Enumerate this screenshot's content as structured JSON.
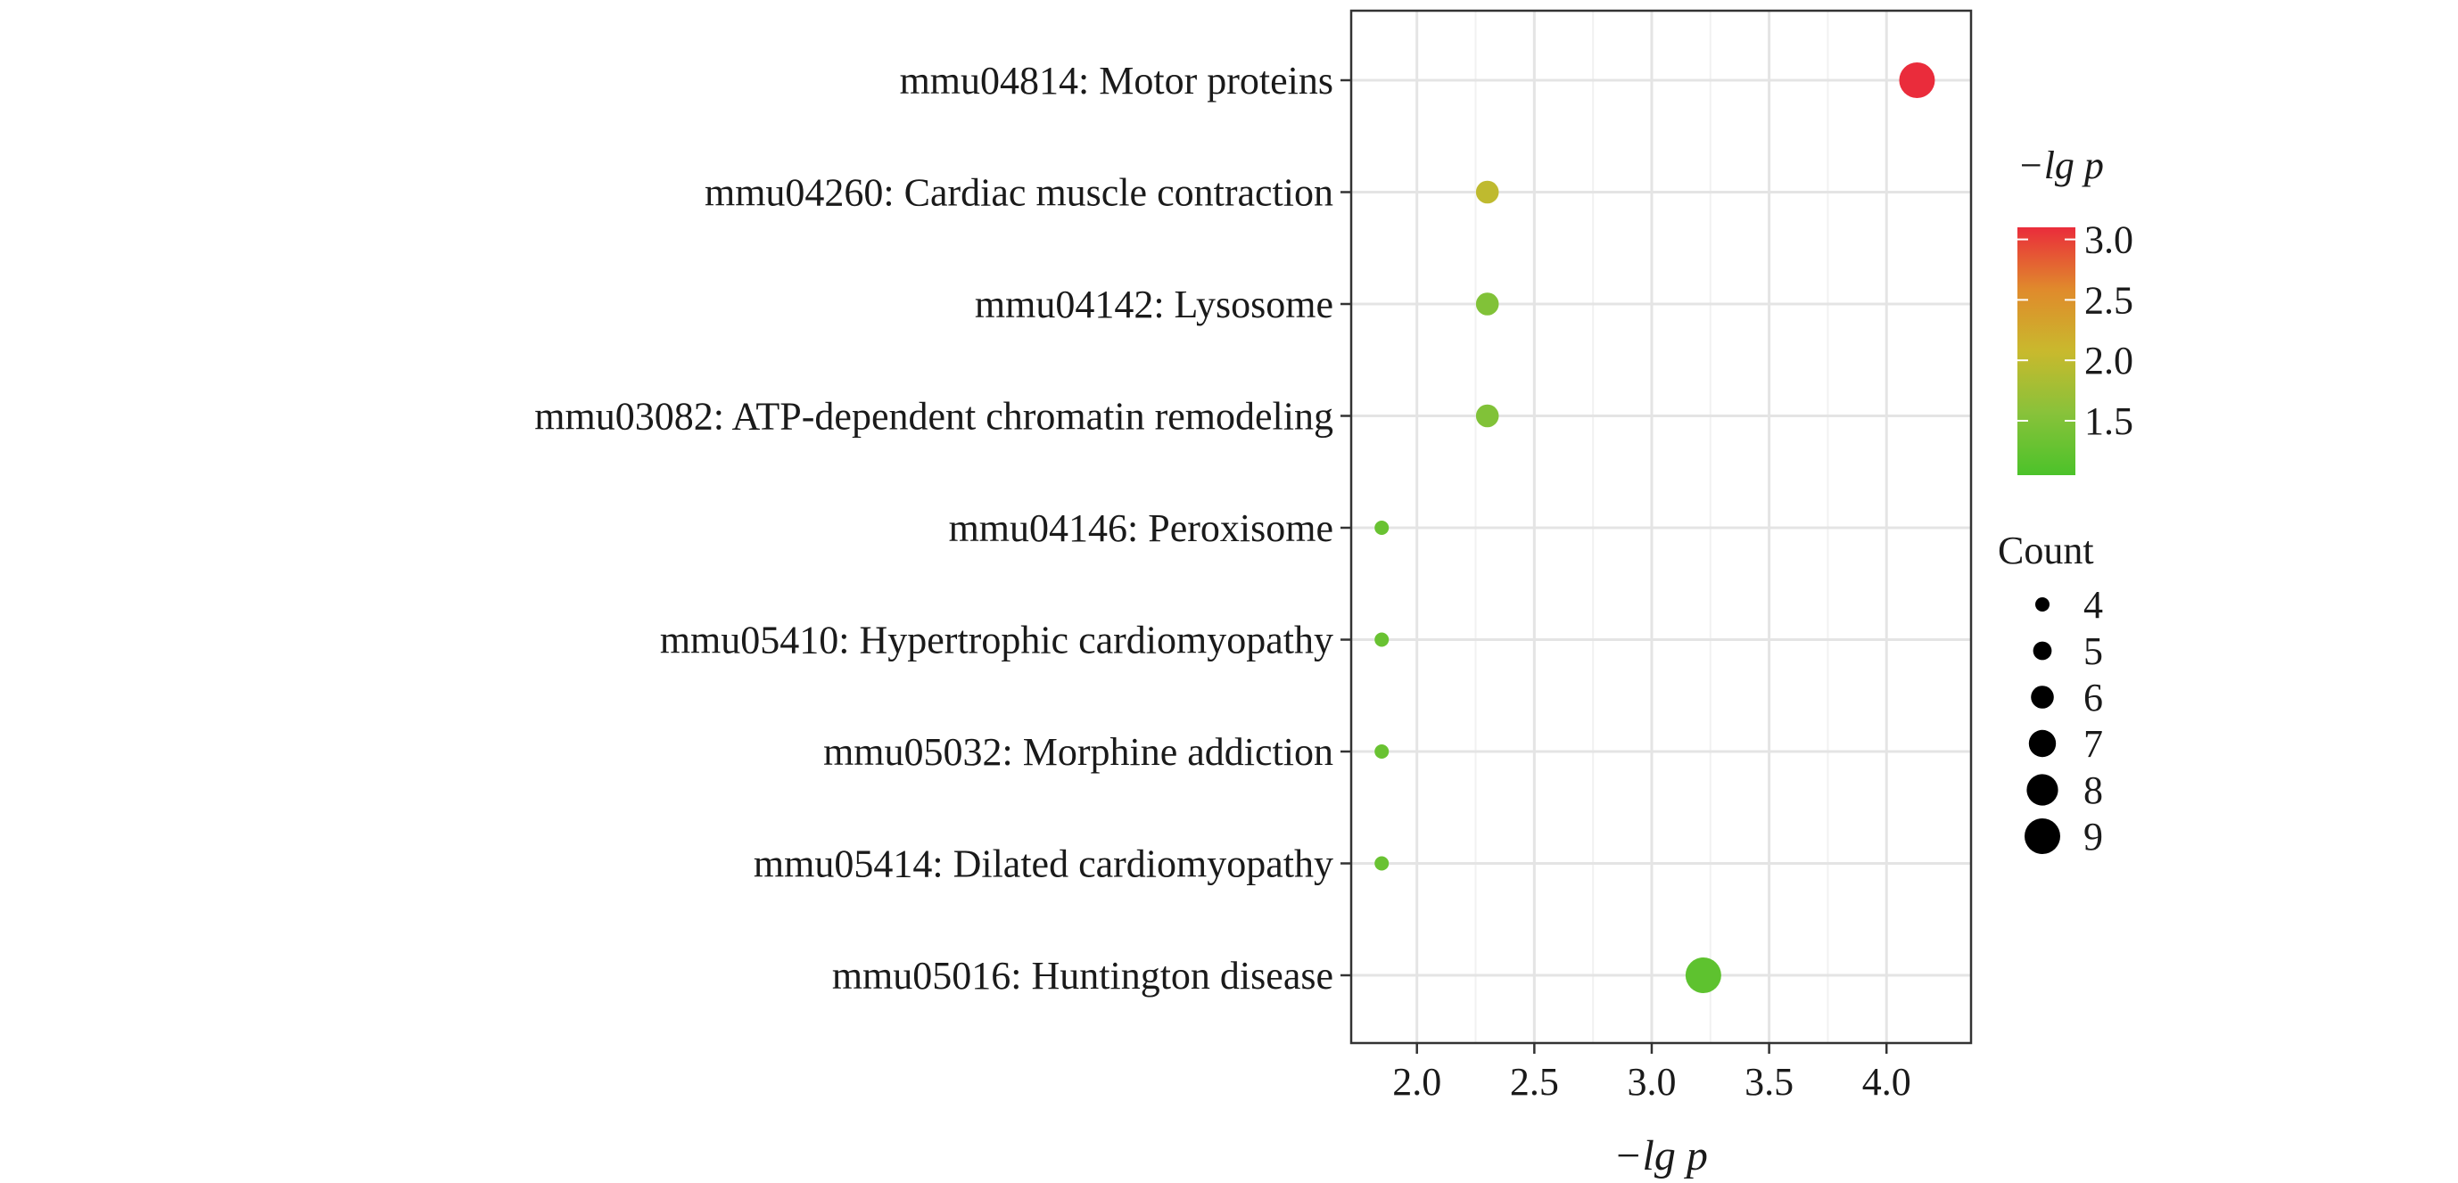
{
  "chart_data": {
    "type": "scatter",
    "xlabel": "−lg p",
    "x_ticks": [
      "2.0",
      "2.5",
      "3.0",
      "3.5",
      "4.0"
    ],
    "xlim": [
      1.72,
      4.36
    ],
    "categories": [
      "mmu04814: Motor proteins",
      "mmu04260: Cardiac muscle contraction",
      "mmu04142: Lysosome",
      "mmu03082: ATP-dependent chromatin remodeling",
      "mmu04146: Peroxisome",
      "mmu05410: Hypertrophic cardiomyopathy",
      "mmu05032: Morphine addiction",
      "mmu05414: Dilated cardiomyopathy",
      "mmu05016: Huntington disease"
    ],
    "points": [
      {
        "x": 4.13,
        "count": 9,
        "color_value": 3.1
      },
      {
        "x": 2.3,
        "count": 6,
        "color_value": 2.0
      },
      {
        "x": 2.3,
        "count": 6,
        "color_value": 1.5
      },
      {
        "x": 2.3,
        "count": 6,
        "color_value": 1.5
      },
      {
        "x": 1.85,
        "count": 4,
        "color_value": 1.3
      },
      {
        "x": 1.85,
        "count": 4,
        "color_value": 1.3
      },
      {
        "x": 1.85,
        "count": 4,
        "color_value": 1.3
      },
      {
        "x": 1.85,
        "count": 4,
        "color_value": 1.3
      },
      {
        "x": 3.22,
        "count": 9,
        "color_value": 1.2
      }
    ],
    "color_legend": {
      "title": "−lg p",
      "ticks": [
        "3.0",
        "2.5",
        "2.0",
        "1.5"
      ],
      "tick_values": [
        3.0,
        2.5,
        2.0,
        1.5
      ],
      "range": [
        1.05,
        3.1
      ],
      "colors": [
        "#4cc22a",
        "#88c23a",
        "#c9b92d",
        "#e08a2c",
        "#ea2c3b"
      ]
    },
    "size_legend": {
      "title": "Count",
      "values": [
        "4",
        "5",
        "6",
        "7",
        "8",
        "9"
      ]
    },
    "grid": true,
    "legend_position": "right"
  }
}
